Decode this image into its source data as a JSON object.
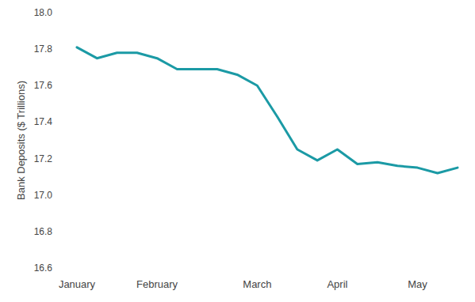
{
  "chart_data": {
    "type": "line",
    "y_label": "Bank Deposits ($ Trillions)",
    "categories": [
      "January",
      null,
      null,
      null,
      "February",
      null,
      null,
      null,
      null,
      "March",
      null,
      null,
      null,
      "April",
      null,
      null,
      null,
      "May",
      null,
      null
    ],
    "values": [
      17.81,
      17.75,
      17.78,
      17.78,
      17.75,
      17.69,
      17.69,
      17.69,
      17.66,
      17.6,
      17.43,
      17.25,
      17.19,
      17.25,
      17.17,
      17.18,
      17.16,
      17.15,
      17.12,
      17.15
    ],
    "color": "#1b9aa5",
    "ylim": [
      16.6,
      18.0
    ],
    "yticks": [
      16.6,
      16.8,
      {
        "value": 17,
        "label": "17.0"
      },
      17.2,
      17.4,
      17.6,
      17.8,
      {
        "value": 18,
        "label": "18.0"
      }
    ],
    "grid": false
  }
}
